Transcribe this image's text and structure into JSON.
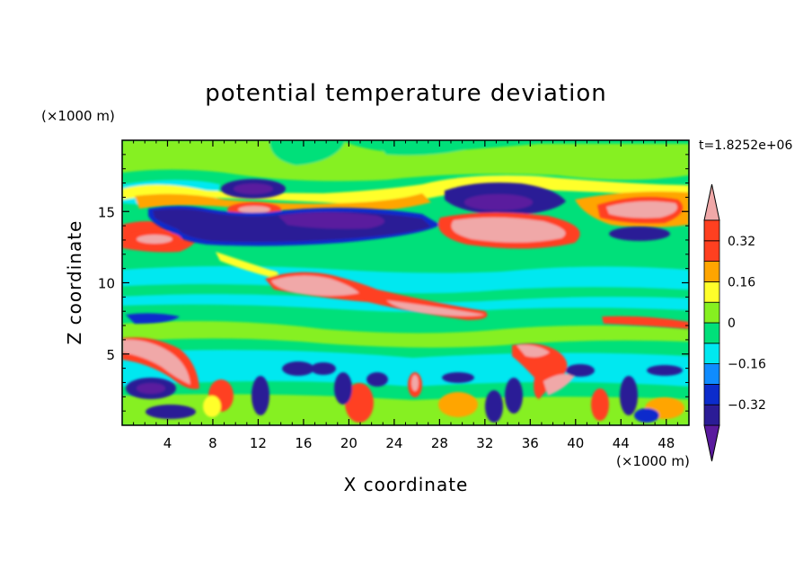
{
  "chart_data": {
    "type": "heatmap",
    "title": "potential temperature deviation",
    "time_label": "t=1.8252e+06",
    "xlabel": "X coordinate",
    "ylabel": "Z coordinate",
    "x_unit": "(×1000 m)",
    "y_unit": "(×1000 m)",
    "xlim": [
      0,
      50
    ],
    "ylim": [
      0,
      20
    ],
    "x_ticks": [
      4,
      8,
      12,
      16,
      20,
      24,
      28,
      32,
      36,
      40,
      44,
      48
    ],
    "y_ticks": [
      5,
      10,
      15
    ],
    "x_tick_labels": [
      "4",
      "8",
      "12",
      "16",
      "20",
      "24",
      "28",
      "32",
      "36",
      "40",
      "44",
      "48"
    ],
    "y_tick_labels": [
      "5",
      "10",
      "15"
    ],
    "colorbar": {
      "levels": [
        -0.4,
        -0.32,
        -0.24,
        -0.16,
        -0.08,
        0,
        0.08,
        0.16,
        0.24,
        0.32,
        0.4
      ],
      "labels": [
        "0.32",
        "0.16",
        "0",
        "−0.16",
        "−0.32"
      ],
      "label_values": [
        0.32,
        0.16,
        0,
        -0.16,
        -0.32
      ],
      "colors": [
        "#5a1a9e",
        "#2b1c96",
        "#0c2ccc",
        "#0f8cff",
        "#00e8f0",
        "#00e07a",
        "#86f020",
        "#ffff2a",
        "#ffa500",
        "#ff4020",
        "#f0a8a8"
      ],
      "extend": "both"
    },
    "field": [
      {
        "x": 26,
        "z": 18.5,
        "value": 0.04
      },
      {
        "x": 10,
        "z": 16.5,
        "value": -0.34
      },
      {
        "x": 21,
        "z": 14,
        "value": -0.36
      },
      {
        "x": 12,
        "z": 15.2,
        "value": 0.34
      },
      {
        "x": 30,
        "z": 16.8,
        "value": -0.38
      },
      {
        "x": 30,
        "z": 13.6,
        "value": 0.38
      },
      {
        "x": 45,
        "z": 15,
        "value": 0.36
      },
      {
        "x": 3,
        "z": 13,
        "value": 0.35
      },
      {
        "x": 15,
        "z": 9.8,
        "value": 0.36
      },
      {
        "x": 30,
        "z": 8,
        "value": 0.34
      },
      {
        "x": 25,
        "z": 10.5,
        "value": -0.1
      },
      {
        "x": 25,
        "z": 6,
        "value": 0.04
      },
      {
        "x": 3,
        "z": 5,
        "value": 0.34
      },
      {
        "x": 39,
        "z": 3,
        "value": 0.34
      },
      {
        "x": 36,
        "z": 5.5,
        "value": 0.34
      }
    ]
  }
}
